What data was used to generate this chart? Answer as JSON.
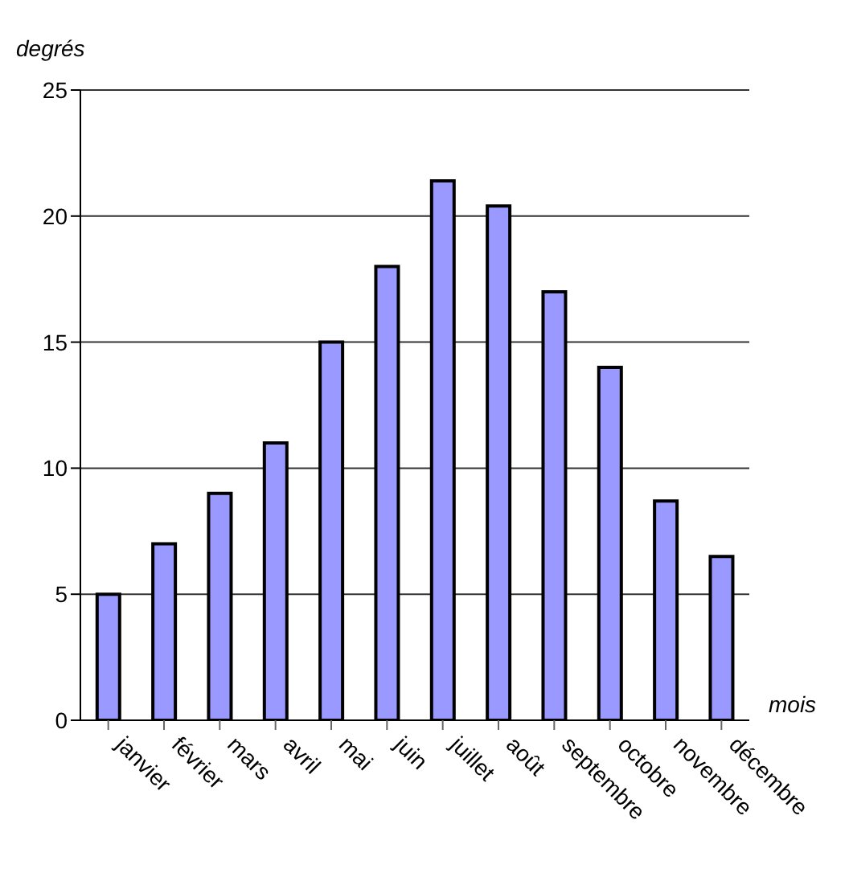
{
  "chart_data": {
    "type": "bar",
    "xlabel": "mois",
    "ylabel": "degrés",
    "categories": [
      "janvier",
      "février",
      "mars",
      "avril",
      "mai",
      "juin",
      "juillet",
      "août",
      "septembre",
      "octobre",
      "novembre",
      "décembre"
    ],
    "values": [
      5,
      7,
      9,
      11,
      15,
      18,
      21.4,
      20.4,
      17,
      14,
      8.7,
      6.5
    ],
    "color": "#9999ff",
    "ylim": [
      0,
      25
    ],
    "yticks": [
      0,
      5,
      10,
      15,
      20,
      25
    ],
    "grid": "y"
  }
}
